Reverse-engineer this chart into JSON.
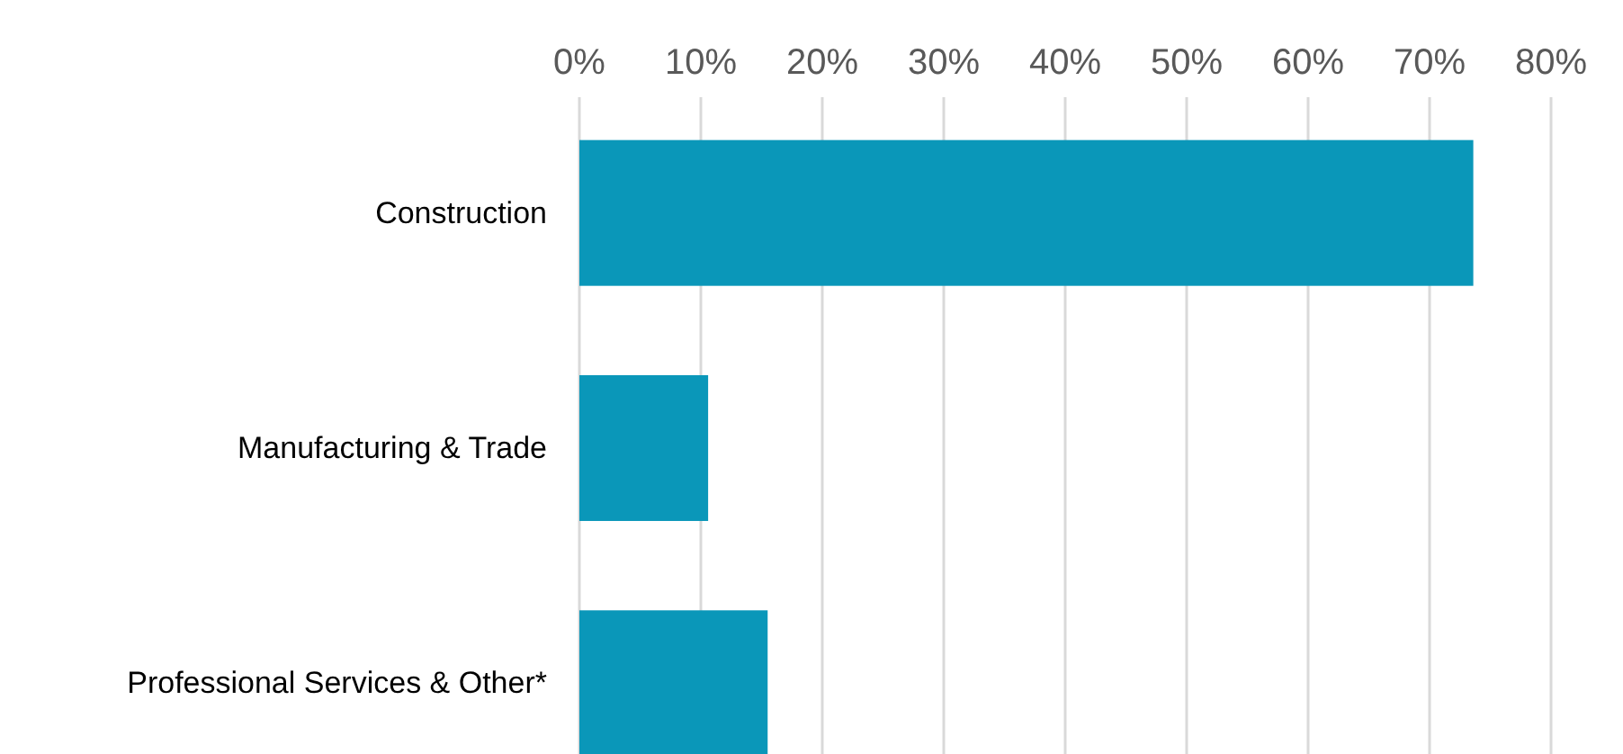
{
  "chart_data": {
    "type": "bar",
    "orientation": "horizontal",
    "categories": [
      "Construction",
      "Manufacturing & Trade",
      "Professional Services & Other*"
    ],
    "values": [
      73.6,
      10.6,
      15.5
    ],
    "color": "#0a97b9",
    "xlim": [
      0,
      80
    ],
    "xticks": [
      {
        "value": 0,
        "label": "0%"
      },
      {
        "value": 10,
        "label": "10%"
      },
      {
        "value": 20,
        "label": "20%"
      },
      {
        "value": 30,
        "label": "30%"
      },
      {
        "value": 40,
        "label": "40%"
      },
      {
        "value": 50,
        "label": "50%"
      },
      {
        "value": 60,
        "label": "60%"
      },
      {
        "value": 70,
        "label": "70%"
      },
      {
        "value": 80,
        "label": "80%"
      }
    ],
    "grid": "x"
  }
}
